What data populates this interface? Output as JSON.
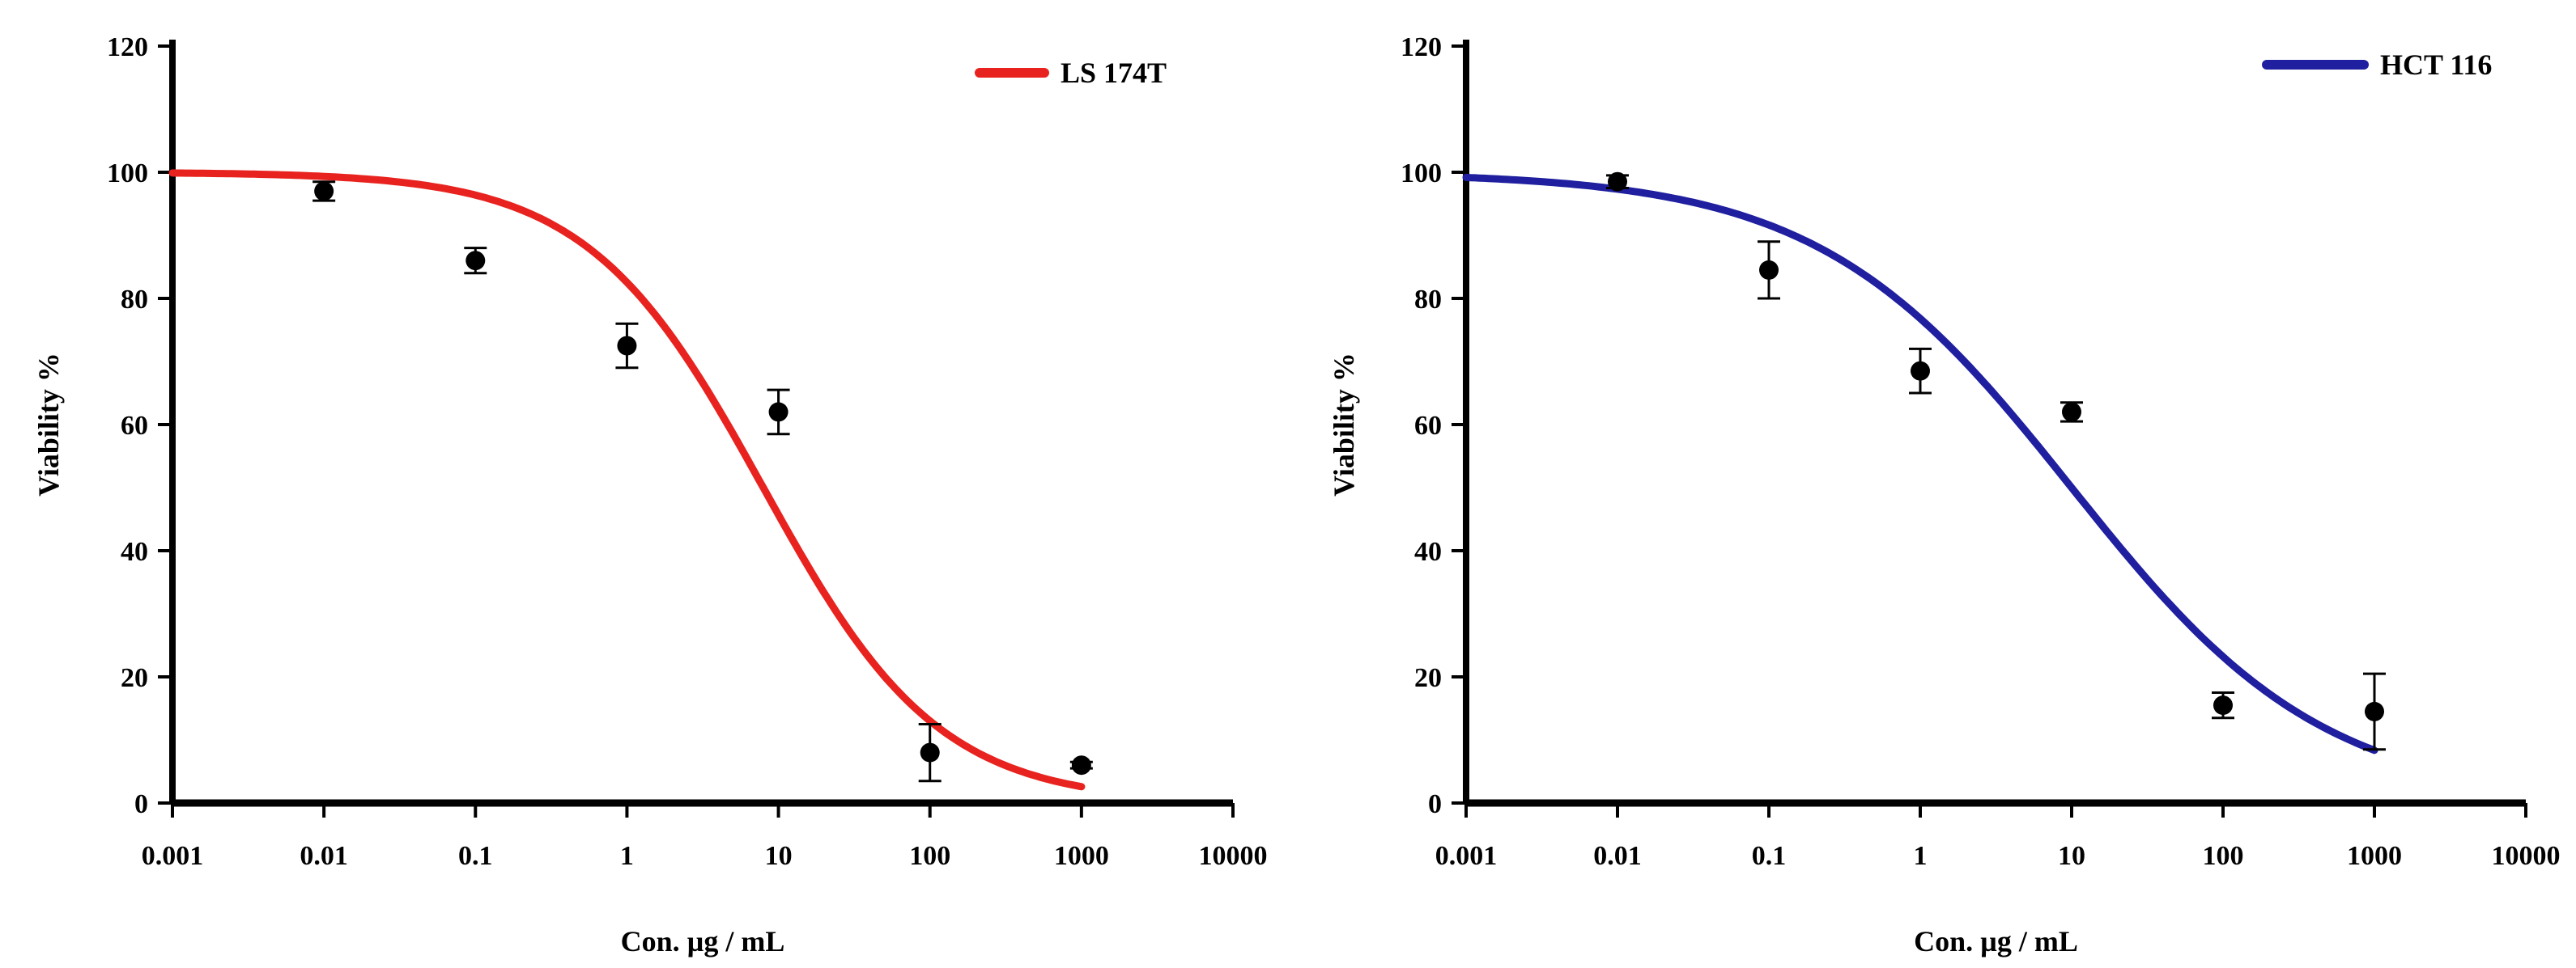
{
  "chart_data": [
    {
      "type": "scatter",
      "title": "",
      "xlabel": "Con. µg / mL",
      "ylabel": "Viability %",
      "xscale": "log",
      "xlim": [
        0.001,
        10000
      ],
      "ylim": [
        0,
        120
      ],
      "xticks": [
        "0.001",
        "0.01",
        "0.1",
        "1",
        "10",
        "100",
        "1000",
        "10000"
      ],
      "yticks": [
        "0",
        "20",
        "40",
        "60",
        "80",
        "100",
        "120"
      ],
      "grid": false,
      "legend_position": "top-right",
      "series": [
        {
          "name": "LS 174T",
          "color": "#e8231f",
          "x": [
            0.01,
            0.1,
            1,
            10,
            100,
            1000
          ],
          "y": [
            97,
            86,
            72.5,
            62,
            8,
            6
          ],
          "error": [
            1.5,
            2,
            3.5,
            3.5,
            4.5,
            0.5
          ],
          "fit": {
            "top": 100,
            "bottom": 0,
            "ic50_log10": 0.9,
            "hill": 0.75
          }
        }
      ]
    },
    {
      "type": "scatter",
      "title": "",
      "xlabel": "Con. µg / mL",
      "ylabel": "Viability %",
      "xscale": "log",
      "xlim": [
        0.001,
        10000
      ],
      "ylim": [
        0,
        120
      ],
      "xticks": [
        "0.001",
        "0.01",
        "0.1",
        "1",
        "10",
        "100",
        "1000",
        "10000"
      ],
      "yticks": [
        "0",
        "20",
        "40",
        "60",
        "80",
        "100",
        "120"
      ],
      "grid": false,
      "legend_position": "top-right",
      "series": [
        {
          "name": "HCT 116",
          "color": "#1f1f9f",
          "x": [
            0.01,
            0.1,
            1,
            10,
            100,
            1000
          ],
          "y": [
            98.5,
            84.5,
            68.5,
            62,
            15.5,
            14.5
          ],
          "error": [
            1,
            4.5,
            3.5,
            1.5,
            2,
            6
          ],
          "fit": {
            "top": 100,
            "bottom": 0,
            "ic50_log10": 1.0,
            "hill": 0.52
          }
        }
      ]
    }
  ]
}
